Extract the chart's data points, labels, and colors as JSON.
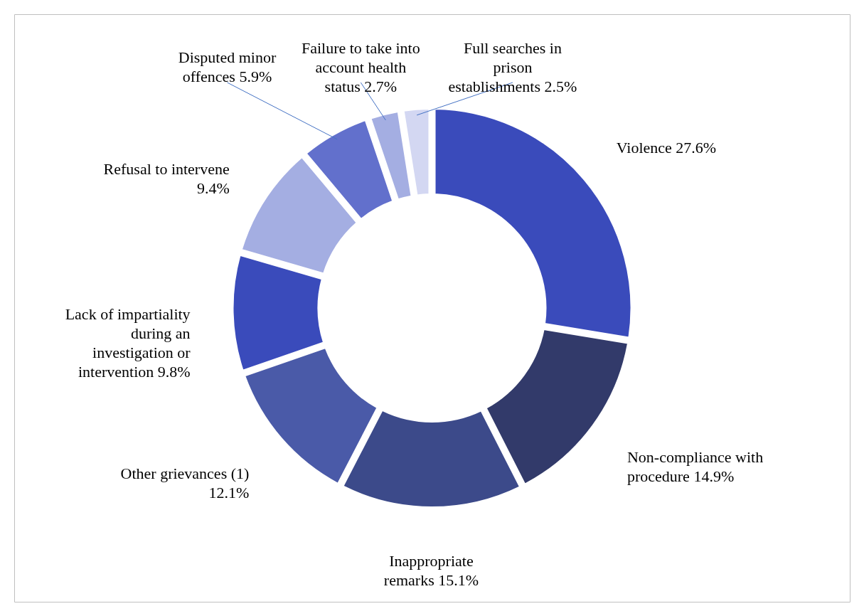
{
  "chart_data": {
    "type": "donut",
    "categories": [
      "Violence",
      "Non-compliance with procedure",
      "Inappropriate remarks",
      "Other grievances (1)",
      "Lack of impartiality during an investigation or intervention",
      "Refusal to intervene",
      "Disputed minor offences",
      "Failure to take into account health status",
      "Full searches in prison establishments"
    ],
    "values": [
      27.6,
      14.9,
      15.1,
      12.1,
      9.8,
      9.4,
      5.9,
      2.7,
      2.5
    ],
    "colors": [
      "#3a4bbb",
      "#323a6a",
      "#3c4a8a",
      "#4a5aa8",
      "#3a4bbb",
      "#a4aee2",
      "#6270cc",
      "#a4aee2",
      "#d3d7f2"
    ],
    "value_labels": [
      "27.6%",
      "14.9%",
      "15.1%",
      "12.1%",
      "9.8%",
      "9.4%",
      "5.9%",
      "2.7%",
      "2.5%"
    ]
  }
}
